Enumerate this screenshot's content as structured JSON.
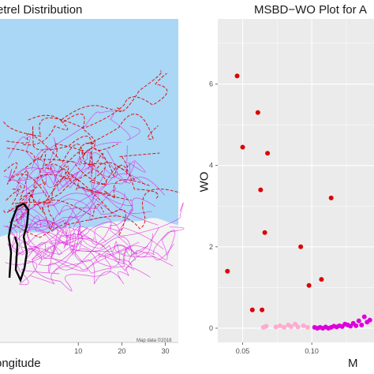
{
  "left_panel": {
    "title": "etrel Distribution",
    "xlabel": "ongitude",
    "map_credit": "Map data ©2018",
    "colors": {
      "ocean": "#a9d7f5",
      "land": "#f3f3f3",
      "track_solid": "#e020e0",
      "track_dashed": "#e00000",
      "colony": "#000000"
    }
  },
  "right_panel": {
    "title": "MSBD−WO Plot for A",
    "xlabel": "M",
    "ylabel": "WO",
    "colors": {
      "panel_bg": "#ebebeb",
      "grid": "#ffffff"
    }
  },
  "chart_data": [
    {
      "type": "line",
      "title": "etrel Distribution",
      "xlabel": "ongitude",
      "ylabel": "",
      "x_ticks": [
        10,
        20,
        30
      ],
      "xlim": [
        -8,
        33
      ],
      "series": [
        {
          "style": "solid",
          "color": "#e020e0"
        },
        {
          "style": "dashed",
          "color": "#e00000"
        },
        {
          "style": "solid",
          "color": "#000000"
        }
      ]
    },
    {
      "type": "scatter",
      "title": "MSBD−WO Plot for A",
      "xlabel": "M",
      "ylabel": "WO",
      "xlim": [
        0.032,
        0.145
      ],
      "ylim": [
        -0.35,
        7.6
      ],
      "x_ticks": [
        0.05,
        0.1
      ],
      "x_tick_labels": [
        "0.05",
        "0.10"
      ],
      "y_ticks": [
        0,
        2,
        4,
        6
      ],
      "y_tick_labels": [
        "0",
        "2",
        "4",
        "6"
      ],
      "grid": true,
      "series": [
        {
          "color": "#dd0000",
          "x": [
            0.039,
            0.046,
            0.05,
            0.057,
            0.061,
            0.063,
            0.064,
            0.066,
            0.068,
            0.092,
            0.098,
            0.107,
            0.114
          ],
          "y": [
            1.4,
            6.2,
            4.45,
            0.45,
            5.3,
            3.4,
            0.45,
            2.35,
            4.3,
            2.0,
            1.05,
            1.2,
            3.2
          ]
        },
        {
          "color": "#ffaad0",
          "x": [
            0.065,
            0.067,
            0.074,
            0.077,
            0.08,
            0.083,
            0.085,
            0.088,
            0.09,
            0.094,
            0.097
          ],
          "y": [
            0.02,
            0.05,
            0.03,
            0.06,
            0.02,
            0.08,
            0.04,
            0.1,
            0.03,
            0.06,
            0.02
          ]
        },
        {
          "color": "#dd00dd",
          "x": [
            0.102,
            0.104,
            0.106,
            0.108,
            0.11,
            0.112,
            0.114,
            0.116,
            0.118,
            0.12,
            0.122,
            0.124,
            0.126,
            0.128,
            0.13,
            0.132,
            0.134,
            0.136,
            0.138,
            0.14,
            0.142
          ],
          "y": [
            0.02,
            0.0,
            0.02,
            0.0,
            0.03,
            0.0,
            0.02,
            0.05,
            0.03,
            0.06,
            0.04,
            0.1,
            0.08,
            0.05,
            0.12,
            0.06,
            0.18,
            0.08,
            0.28,
            0.15,
            0.2
          ]
        }
      ]
    }
  ]
}
